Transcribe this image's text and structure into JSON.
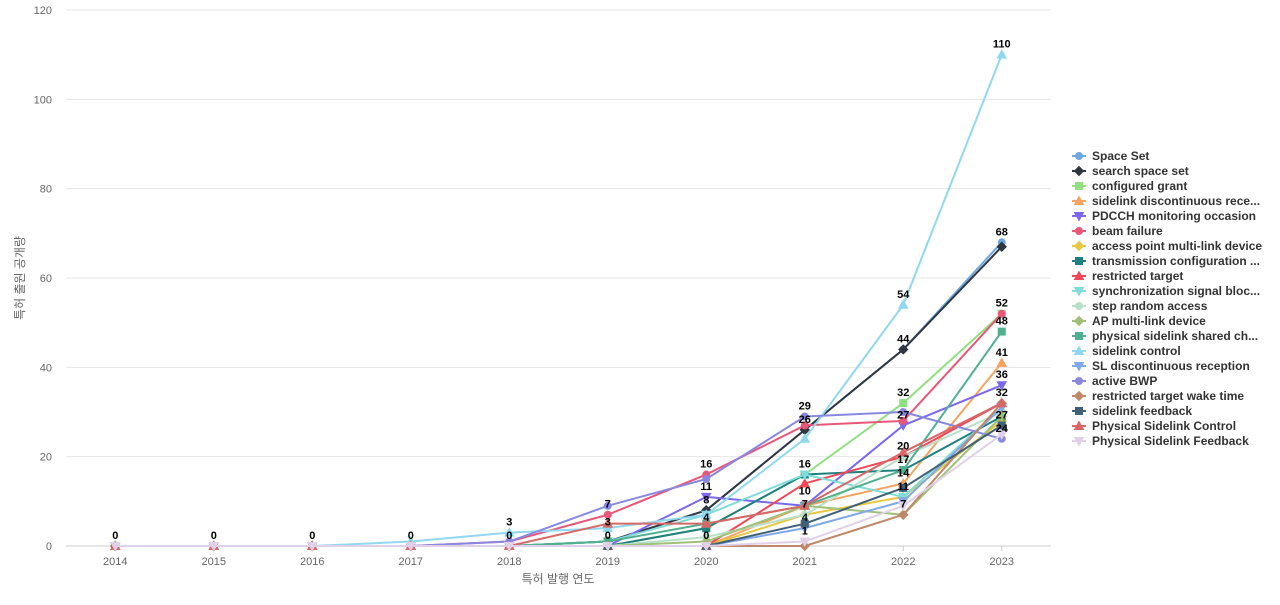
{
  "chart_data": {
    "type": "line",
    "xlabel": "특허 발행 연도",
    "ylabel": "특허 출원 공개량",
    "ylim": [
      0,
      120
    ],
    "yticks": [
      0,
      20,
      40,
      60,
      80,
      100,
      120
    ],
    "categories": [
      "2014",
      "2015",
      "2016",
      "2017",
      "2018",
      "2019",
      "2020",
      "2021",
      "2022",
      "2023"
    ],
    "grid": true,
    "legend_position": "right",
    "series": [
      {
        "name": "Space Set",
        "color": "#6fa8dc",
        "marker": "circle",
        "values": [
          0,
          0,
          0,
          0,
          0,
          1,
          8,
          26,
          44,
          68
        ]
      },
      {
        "name": "search space set",
        "color": "#2f3640",
        "marker": "diamond",
        "values": [
          0,
          0,
          0,
          0,
          0,
          1,
          8,
          26,
          44,
          67
        ]
      },
      {
        "name": "configured grant",
        "color": "#90e080",
        "marker": "square",
        "values": [
          0,
          0,
          0,
          0,
          0,
          0,
          4,
          16,
          32,
          52
        ]
      },
      {
        "name": "sidelink discontinuous rece...",
        "color": "#f4a460",
        "marker": "triangle-up",
        "values": [
          0,
          0,
          0,
          0,
          0,
          0,
          0,
          9,
          14,
          41
        ]
      },
      {
        "name": "PDCCH monitoring occasion",
        "color": "#7b68ee",
        "marker": "triangle-down",
        "values": [
          0,
          0,
          0,
          0,
          0,
          0,
          11,
          9,
          27,
          36
        ]
      },
      {
        "name": "beam failure",
        "color": "#e8577a",
        "marker": "circle",
        "values": [
          0,
          0,
          0,
          0,
          1,
          7,
          16,
          27,
          28,
          52
        ]
      },
      {
        "name": "access point multi-link device",
        "color": "#e8c840",
        "marker": "diamond",
        "values": [
          0,
          0,
          0,
          0,
          0,
          0,
          0,
          7,
          11,
          28
        ]
      },
      {
        "name": "transmission configuration ...",
        "color": "#1f8080",
        "marker": "square",
        "values": [
          0,
          0,
          0,
          0,
          0,
          0,
          4,
          16,
          17,
          29
        ]
      },
      {
        "name": "restricted target",
        "color": "#f04858",
        "marker": "triangle-up",
        "values": [
          0,
          0,
          0,
          0,
          0,
          0,
          0,
          14,
          20,
          32
        ]
      },
      {
        "name": "synchronization signal bloc...",
        "color": "#80dcd8",
        "marker": "triangle-down",
        "values": [
          0,
          0,
          0,
          0,
          0,
          1,
          7,
          16,
          11,
          31
        ]
      },
      {
        "name": "step random access",
        "color": "#b8e0c8",
        "marker": "circle",
        "values": [
          0,
          0,
          0,
          0,
          0,
          0,
          2,
          7,
          20,
          30
        ]
      },
      {
        "name": "AP multi-link device",
        "color": "#a0c078",
        "marker": "diamond",
        "values": [
          0,
          0,
          0,
          0,
          0,
          0,
          1,
          9,
          7,
          29
        ]
      },
      {
        "name": "physical sidelink shared ch...",
        "color": "#50b090",
        "marker": "square",
        "values": [
          0,
          0,
          0,
          0,
          0,
          1,
          5,
          9,
          17,
          48
        ]
      },
      {
        "name": "sidelink control",
        "color": "#90d8f0",
        "marker": "triangle-up",
        "values": [
          0,
          0,
          0,
          1,
          3,
          4,
          7,
          24,
          54,
          110
        ]
      },
      {
        "name": "SL discontinuous reception",
        "color": "#80a8e8",
        "marker": "triangle-down",
        "values": [
          0,
          0,
          0,
          0,
          0,
          0,
          0,
          4,
          10,
          31
        ]
      },
      {
        "name": "active BWP",
        "color": "#8888e0",
        "marker": "circle",
        "values": [
          0,
          0,
          0,
          0,
          1,
          9,
          15,
          29,
          30,
          24
        ]
      },
      {
        "name": "restricted target wake time",
        "color": "#c08868",
        "marker": "diamond",
        "values": [
          0,
          0,
          0,
          0,
          0,
          0,
          0,
          0,
          7,
          32
        ]
      },
      {
        "name": "sidelink feedback",
        "color": "#406078",
        "marker": "square",
        "values": [
          0,
          0,
          0,
          0,
          0,
          0,
          0,
          5,
          13,
          27
        ]
      },
      {
        "name": "Physical Sidelink Control",
        "color": "#d86868",
        "marker": "triangle-up",
        "values": [
          0,
          0,
          0,
          0,
          0,
          5,
          5,
          9,
          21,
          32
        ]
      },
      {
        "name": "Physical Sidelink Feedback",
        "color": "#e0d0e8",
        "marker": "triangle-down",
        "values": [
          0,
          0,
          0,
          0,
          0,
          0,
          0,
          1,
          9,
          25
        ]
      }
    ],
    "data_labels": [
      {
        "x": "2014",
        "text": "0",
        "value": 0
      },
      {
        "x": "2015",
        "text": "0",
        "value": 0
      },
      {
        "x": "2016",
        "text": "0",
        "value": 0
      },
      {
        "x": "2017",
        "text": "0",
        "value": 0
      },
      {
        "x": "2018",
        "text": "3",
        "value": 3
      },
      {
        "x": "2018",
        "text": "0",
        "value": 0
      },
      {
        "x": "2019",
        "text": "7",
        "value": 7
      },
      {
        "x": "2019",
        "text": "3",
        "value": 3
      },
      {
        "x": "2019",
        "text": "0",
        "value": 0
      },
      {
        "x": "2020",
        "text": "16",
        "value": 16
      },
      {
        "x": "2020",
        "text": "11",
        "value": 11
      },
      {
        "x": "2020",
        "text": "8",
        "value": 8
      },
      {
        "x": "2020",
        "text": "4",
        "value": 4
      },
      {
        "x": "2020",
        "text": "0",
        "value": 0
      },
      {
        "x": "2021",
        "text": "29",
        "value": 29
      },
      {
        "x": "2021",
        "text": "26",
        "value": 26
      },
      {
        "x": "2021",
        "text": "16",
        "value": 16
      },
      {
        "x": "2021",
        "text": "10",
        "value": 10
      },
      {
        "x": "2021",
        "text": "7",
        "value": 7
      },
      {
        "x": "2021",
        "text": "4",
        "value": 4
      },
      {
        "x": "2021",
        "text": "1",
        "value": 1
      },
      {
        "x": "2022",
        "text": "54",
        "value": 54
      },
      {
        "x": "2022",
        "text": "44",
        "value": 44
      },
      {
        "x": "2022",
        "text": "32",
        "value": 32
      },
      {
        "x": "2022",
        "text": "27",
        "value": 27
      },
      {
        "x": "2022",
        "text": "20",
        "value": 20
      },
      {
        "x": "2022",
        "text": "17",
        "value": 17
      },
      {
        "x": "2022",
        "text": "14",
        "value": 14
      },
      {
        "x": "2022",
        "text": "11",
        "value": 11
      },
      {
        "x": "2022",
        "text": "7",
        "value": 7
      },
      {
        "x": "2023",
        "text": "110",
        "value": 110
      },
      {
        "x": "2023",
        "text": "68",
        "value": 68
      },
      {
        "x": "2023",
        "text": "52",
        "value": 52
      },
      {
        "x": "2023",
        "text": "48",
        "value": 48
      },
      {
        "x": "2023",
        "text": "41",
        "value": 41
      },
      {
        "x": "2023",
        "text": "36",
        "value": 36
      },
      {
        "x": "2023",
        "text": "32",
        "value": 32
      },
      {
        "x": "2023",
        "text": "27",
        "value": 27
      },
      {
        "x": "2023",
        "text": "24",
        "value": 24
      }
    ]
  }
}
